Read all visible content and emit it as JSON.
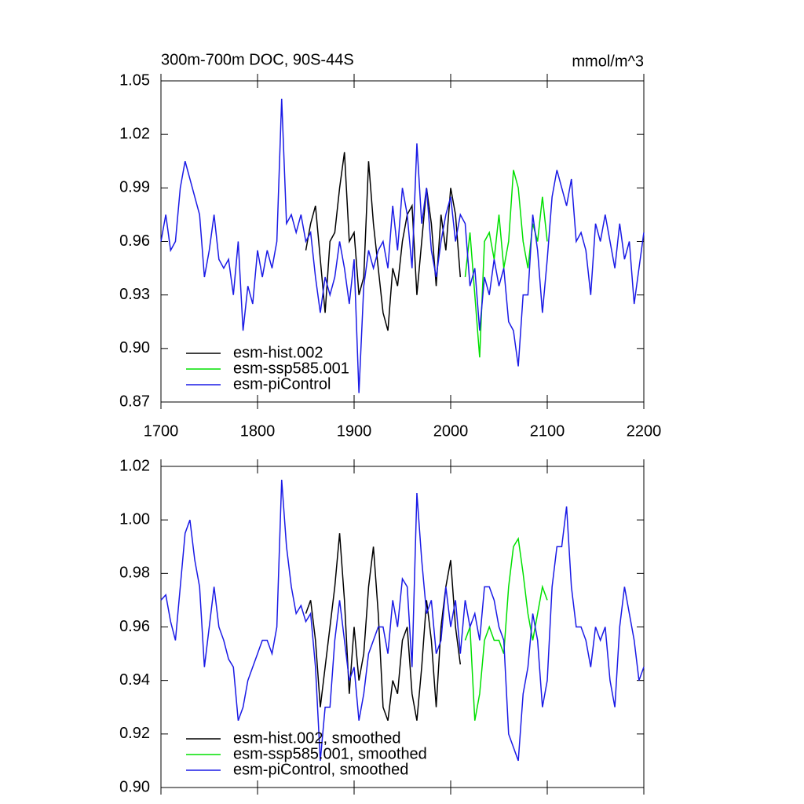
{
  "chart_data": [
    {
      "type": "line",
      "title": "300m-700m DOC, 90S-44S",
      "units": "mmol/m^3",
      "xlim": [
        1700,
        2200
      ],
      "xticks": [
        1700,
        1800,
        1900,
        2000,
        2100,
        2200
      ],
      "xtick_labels": true,
      "ylim": [
        0.87,
        1.05
      ],
      "yticks": [
        0.87,
        {
          "value": 0.9,
          "label": "0.90"
        },
        0.93,
        0.96,
        0.99,
        1.02,
        1.05
      ],
      "legend": "lower left",
      "series": [
        {
          "name": "esm-hist.002",
          "color": "#000000",
          "x": [
            1850,
            1855,
            1860,
            1865,
            1870,
            1875,
            1880,
            1885,
            1890,
            1895,
            1900,
            1905,
            1910,
            1915,
            1920,
            1925,
            1930,
            1935,
            1940,
            1945,
            1950,
            1955,
            1960,
            1965,
            1970,
            1975,
            1980,
            1985,
            1990,
            1995,
            2000,
            2005,
            2010
          ],
          "values": [
            0.955,
            0.97,
            0.98,
            0.95,
            0.92,
            0.96,
            0.965,
            0.99,
            1.01,
            0.96,
            0.965,
            0.93,
            0.94,
            1.005,
            0.97,
            0.945,
            0.92,
            0.91,
            0.945,
            0.935,
            0.96,
            0.975,
            0.98,
            0.93,
            0.96,
            0.99,
            0.97,
            0.935,
            0.975,
            0.955,
            0.99,
            0.975,
            0.94
          ]
        },
        {
          "name": "esm-ssp585.001",
          "color": "#00e000",
          "x": [
            2015,
            2020,
            2025,
            2030,
            2035,
            2040,
            2045,
            2050,
            2055,
            2060,
            2065,
            2070,
            2075,
            2080,
            2085,
            2090,
            2095,
            2100
          ],
          "values": [
            0.94,
            0.965,
            0.93,
            0.895,
            0.96,
            0.965,
            0.95,
            0.975,
            0.945,
            0.96,
            1.0,
            0.99,
            0.96,
            0.945,
            0.97,
            0.96,
            0.985,
            0.96
          ]
        },
        {
          "name": "esm-piControl",
          "color": "#1a1ae6",
          "x": [
            1700,
            1705,
            1710,
            1715,
            1720,
            1725,
            1730,
            1735,
            1740,
            1745,
            1750,
            1755,
            1760,
            1765,
            1770,
            1775,
            1780,
            1785,
            1790,
            1795,
            1800,
            1805,
            1810,
            1815,
            1820,
            1825,
            1830,
            1835,
            1840,
            1845,
            1850,
            1855,
            1860,
            1865,
            1870,
            1875,
            1880,
            1885,
            1890,
            1895,
            1900,
            1905,
            1910,
            1915,
            1920,
            1925,
            1930,
            1935,
            1940,
            1945,
            1950,
            1955,
            1960,
            1965,
            1970,
            1975,
            1980,
            1985,
            1990,
            1995,
            2000,
            2005,
            2010,
            2015,
            2020,
            2025,
            2030,
            2035,
            2040,
            2045,
            2050,
            2055,
            2060,
            2065,
            2070,
            2075,
            2080,
            2085,
            2090,
            2095,
            2100,
            2105,
            2110,
            2115,
            2120,
            2125,
            2130,
            2135,
            2140,
            2145,
            2150,
            2155,
            2160,
            2165,
            2170,
            2175,
            2180,
            2185,
            2190,
            2195,
            2200
          ],
          "values": [
            0.96,
            0.975,
            0.955,
            0.96,
            0.99,
            1.005,
            0.995,
            0.985,
            0.975,
            0.94,
            0.955,
            0.975,
            0.95,
            0.945,
            0.95,
            0.93,
            0.96,
            0.91,
            0.935,
            0.925,
            0.955,
            0.94,
            0.955,
            0.945,
            0.96,
            1.04,
            0.97,
            0.975,
            0.965,
            0.975,
            0.96,
            0.965,
            0.94,
            0.92,
            0.94,
            0.93,
            0.94,
            0.96,
            0.945,
            0.925,
            0.95,
            0.875,
            0.935,
            0.955,
            0.945,
            0.955,
            0.96,
            0.945,
            0.98,
            0.955,
            0.99,
            0.975,
            0.945,
            1.015,
            0.97,
            0.99,
            0.955,
            0.94,
            0.96,
            0.975,
            0.985,
            0.96,
            0.975,
            0.97,
            0.935,
            0.945,
            0.91,
            0.94,
            0.93,
            0.95,
            0.935,
            0.945,
            0.915,
            0.91,
            0.89,
            0.93,
            0.93,
            0.975,
            0.955,
            0.92,
            0.95,
            0.985,
            1.0,
            0.99,
            0.98,
            0.995,
            0.96,
            0.965,
            0.955,
            0.93,
            0.97,
            0.96,
            0.975,
            0.96,
            0.945,
            0.97,
            0.95,
            0.96,
            0.925,
            0.945,
            0.965
          ]
        }
      ]
    },
    {
      "type": "line",
      "xlim": [
        1700,
        2200
      ],
      "xticks": [
        1700,
        1800,
        1900,
        2000,
        2100,
        2200
      ],
      "xtick_labels": false,
      "ylim": [
        0.9,
        1.02
      ],
      "yticks": [
        {
          "value": 0.9,
          "label": "0.90"
        },
        0.92,
        0.94,
        0.96,
        0.98,
        {
          "value": 1.0,
          "label": "1.00"
        },
        1.02
      ],
      "legend": "lower left",
      "series": [
        {
          "name": "esm-hist.002, smoothed",
          "color": "#000000",
          "x": [
            1850,
            1855,
            1860,
            1865,
            1870,
            1875,
            1880,
            1885,
            1890,
            1895,
            1900,
            1905,
            1910,
            1915,
            1920,
            1925,
            1930,
            1935,
            1940,
            1945,
            1950,
            1955,
            1960,
            1965,
            1970,
            1975,
            1980,
            1985,
            1990,
            1995,
            2000,
            2005,
            2010
          ],
          "values": [
            0.965,
            0.97,
            0.955,
            0.93,
            0.945,
            0.96,
            0.975,
            0.995,
            0.97,
            0.935,
            0.96,
            0.94,
            0.95,
            0.975,
            0.99,
            0.965,
            0.93,
            0.925,
            0.94,
            0.935,
            0.955,
            0.96,
            0.935,
            0.925,
            0.945,
            0.97,
            0.955,
            0.93,
            0.96,
            0.975,
            0.985,
            0.96,
            0.946
          ]
        },
        {
          "name": "esm-ssp585.001, smoothed",
          "color": "#00e000",
          "x": [
            2015,
            2020,
            2025,
            2030,
            2035,
            2040,
            2045,
            2050,
            2055,
            2060,
            2065,
            2070,
            2075,
            2080,
            2085,
            2090,
            2095,
            2100
          ],
          "values": [
            0.955,
            0.96,
            0.925,
            0.935,
            0.955,
            0.96,
            0.955,
            0.955,
            0.95,
            0.975,
            0.99,
            0.993,
            0.98,
            0.965,
            0.955,
            0.965,
            0.975,
            0.97
          ]
        },
        {
          "name": "esm-piControl, smoothed",
          "color": "#1a1ae6",
          "x": [
            1700,
            1705,
            1710,
            1715,
            1720,
            1725,
            1730,
            1735,
            1740,
            1745,
            1750,
            1755,
            1760,
            1765,
            1770,
            1775,
            1780,
            1785,
            1790,
            1795,
            1800,
            1805,
            1810,
            1815,
            1820,
            1825,
            1830,
            1835,
            1840,
            1845,
            1850,
            1855,
            1860,
            1865,
            1870,
            1875,
            1880,
            1885,
            1890,
            1895,
            1900,
            1905,
            1910,
            1915,
            1920,
            1925,
            1930,
            1935,
            1940,
            1945,
            1950,
            1955,
            1960,
            1965,
            1970,
            1975,
            1980,
            1985,
            1990,
            1995,
            2000,
            2005,
            2010,
            2015,
            2020,
            2025,
            2030,
            2035,
            2040,
            2045,
            2050,
            2055,
            2060,
            2065,
            2070,
            2075,
            2080,
            2085,
            2090,
            2095,
            2100,
            2105,
            2110,
            2115,
            2120,
            2125,
            2130,
            2135,
            2140,
            2145,
            2150,
            2155,
            2160,
            2165,
            2170,
            2175,
            2180,
            2185,
            2190,
            2195,
            2200
          ],
          "values": [
            0.97,
            0.972,
            0.962,
            0.955,
            0.975,
            0.995,
            1.0,
            0.985,
            0.975,
            0.945,
            0.96,
            0.975,
            0.96,
            0.955,
            0.948,
            0.945,
            0.925,
            0.93,
            0.94,
            0.945,
            0.95,
            0.955,
            0.955,
            0.95,
            0.96,
            1.015,
            0.99,
            0.975,
            0.965,
            0.968,
            0.962,
            0.965,
            0.945,
            0.91,
            0.93,
            0.93,
            0.955,
            0.97,
            0.955,
            0.94,
            0.945,
            0.925,
            0.935,
            0.95,
            0.955,
            0.96,
            0.96,
            0.95,
            0.97,
            0.96,
            0.978,
            0.975,
            0.945,
            1.01,
            0.985,
            0.965,
            0.97,
            0.95,
            0.955,
            0.975,
            0.96,
            0.97,
            0.95,
            0.97,
            0.96,
            0.965,
            0.955,
            0.975,
            0.975,
            0.97,
            0.96,
            0.955,
            0.92,
            0.915,
            0.91,
            0.935,
            0.945,
            0.965,
            0.955,
            0.93,
            0.94,
            0.975,
            0.99,
            0.99,
            1.005,
            0.975,
            0.96,
            0.96,
            0.955,
            0.945,
            0.96,
            0.955,
            0.96,
            0.94,
            0.93,
            0.96,
            0.975,
            0.965,
            0.955,
            0.94,
            0.945
          ]
        }
      ]
    }
  ]
}
